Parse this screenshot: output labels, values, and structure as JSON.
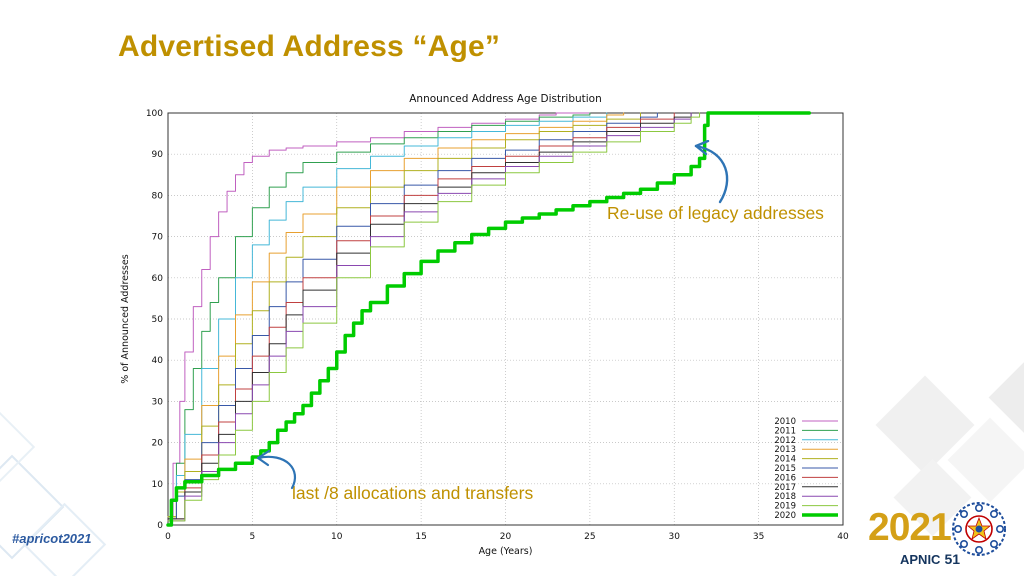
{
  "slide": {
    "title": "Advertised Address “Age”",
    "hashtag": "#apricot2021",
    "annotations": {
      "legacy": "Re-use of legacy addresses",
      "last8": "last /8 allocations and transfers"
    },
    "footer_logo": {
      "year": "2021",
      "brand": "APNIC",
      "number": "51"
    },
    "colors": {
      "title_gold": "#BF9000",
      "annotation_gold": "#BF9000",
      "arrow_blue": "#2E74B5",
      "hashtag_blue": "#2C5AA0",
      "logo_gold": "#D4A017",
      "logo_navy": "#15355E"
    }
  },
  "chart_data": {
    "type": "line",
    "title": "Announced Address Age Distribution",
    "xlabel": "Age (Years)",
    "ylabel": "% of Announced Addresses",
    "xlim": [
      0,
      40
    ],
    "ylim": [
      0,
      100
    ],
    "xticks": [
      0,
      5,
      10,
      15,
      20,
      25,
      30,
      35,
      40
    ],
    "yticks": [
      0,
      10,
      20,
      30,
      40,
      50,
      60,
      70,
      80,
      90,
      100
    ],
    "grid": true,
    "legend_position": "bottom-right",
    "series": [
      {
        "name": "2010",
        "color": "#c060c0",
        "width": 1,
        "points": [
          [
            0,
            2
          ],
          [
            0.3,
            15
          ],
          [
            0.7,
            30
          ],
          [
            1,
            42
          ],
          [
            1.5,
            53
          ],
          [
            2,
            62
          ],
          [
            2.5,
            70
          ],
          [
            3,
            76
          ],
          [
            3.5,
            81
          ],
          [
            4,
            85
          ],
          [
            4.5,
            88
          ],
          [
            5,
            89.5
          ],
          [
            6,
            91
          ],
          [
            7,
            91.5
          ],
          [
            8,
            92
          ],
          [
            10,
            93
          ],
          [
            12,
            94
          ],
          [
            14,
            95.5
          ],
          [
            16,
            96.5
          ],
          [
            18,
            97.5
          ],
          [
            20,
            98.5
          ],
          [
            22,
            99.5
          ],
          [
            23,
            100
          ],
          [
            25,
            100
          ]
        ]
      },
      {
        "name": "2011",
        "color": "#30a050",
        "width": 1,
        "points": [
          [
            0,
            2
          ],
          [
            0.5,
            15
          ],
          [
            1,
            28
          ],
          [
            1.5,
            38
          ],
          [
            2,
            47
          ],
          [
            2.5,
            54
          ],
          [
            3,
            60
          ],
          [
            4,
            70
          ],
          [
            5,
            77
          ],
          [
            6,
            82
          ],
          [
            7,
            85.5
          ],
          [
            8,
            88
          ],
          [
            10,
            90.5
          ],
          [
            12,
            92.5
          ],
          [
            14,
            94
          ],
          [
            16,
            95.5
          ],
          [
            18,
            97
          ],
          [
            20,
            98
          ],
          [
            22,
            99
          ],
          [
            24,
            99.5
          ],
          [
            25,
            100
          ]
        ]
      },
      {
        "name": "2012",
        "color": "#45b8d8",
        "width": 1,
        "points": [
          [
            0,
            2
          ],
          [
            0.5,
            12
          ],
          [
            1,
            22
          ],
          [
            2,
            38
          ],
          [
            3,
            50
          ],
          [
            4,
            60
          ],
          [
            5,
            68
          ],
          [
            6,
            74
          ],
          [
            7,
            78.5
          ],
          [
            8,
            82
          ],
          [
            10,
            86.5
          ],
          [
            12,
            89.5
          ],
          [
            14,
            92
          ],
          [
            16,
            94
          ],
          [
            18,
            95.5
          ],
          [
            20,
            97
          ],
          [
            22,
            98
          ],
          [
            24,
            99
          ],
          [
            26,
            100
          ]
        ]
      },
      {
        "name": "2013",
        "color": "#e8a030",
        "width": 1,
        "points": [
          [
            0,
            2
          ],
          [
            0.5,
            9
          ],
          [
            1,
            16
          ],
          [
            2,
            29
          ],
          [
            3,
            41
          ],
          [
            4,
            51
          ],
          [
            5,
            59
          ],
          [
            6,
            66
          ],
          [
            7,
            71
          ],
          [
            8,
            75.5
          ],
          [
            10,
            82
          ],
          [
            12,
            86
          ],
          [
            14,
            89
          ],
          [
            16,
            91.5
          ],
          [
            18,
            93.5
          ],
          [
            20,
            95
          ],
          [
            22,
            96.5
          ],
          [
            24,
            98
          ],
          [
            26,
            99.5
          ],
          [
            27,
            100
          ]
        ]
      },
      {
        "name": "2014",
        "color": "#b0b020",
        "width": 1,
        "points": [
          [
            0,
            2
          ],
          [
            0.5,
            8
          ],
          [
            1,
            13
          ],
          [
            2,
            24
          ],
          [
            3,
            34
          ],
          [
            4,
            44
          ],
          [
            5,
            52
          ],
          [
            6,
            59
          ],
          [
            7,
            65
          ],
          [
            8,
            70
          ],
          [
            10,
            77
          ],
          [
            12,
            82
          ],
          [
            14,
            86
          ],
          [
            16,
            89
          ],
          [
            18,
            91.5
          ],
          [
            20,
            93.5
          ],
          [
            22,
            95.5
          ],
          [
            24,
            97
          ],
          [
            26,
            98.5
          ],
          [
            28,
            100
          ]
        ]
      },
      {
        "name": "2015",
        "color": "#3858a8",
        "width": 1,
        "points": [
          [
            0,
            1.5
          ],
          [
            0.5,
            7
          ],
          [
            1,
            11
          ],
          [
            2,
            20
          ],
          [
            3,
            29
          ],
          [
            4,
            38
          ],
          [
            5,
            46
          ],
          [
            6,
            53
          ],
          [
            7,
            59
          ],
          [
            8,
            64.5
          ],
          [
            10,
            72.5
          ],
          [
            12,
            78
          ],
          [
            14,
            82.5
          ],
          [
            16,
            86
          ],
          [
            18,
            89
          ],
          [
            20,
            91
          ],
          [
            22,
            93.5
          ],
          [
            24,
            95.5
          ],
          [
            26,
            97.5
          ],
          [
            28,
            99
          ],
          [
            29,
            100
          ]
        ]
      },
      {
        "name": "2016",
        "color": "#c04040",
        "width": 1,
        "points": [
          [
            0,
            1.5
          ],
          [
            1,
            9
          ],
          [
            2,
            17
          ],
          [
            3,
            25
          ],
          [
            4,
            33
          ],
          [
            5,
            41
          ],
          [
            6,
            48
          ],
          [
            7,
            54
          ],
          [
            8,
            60
          ],
          [
            10,
            69
          ],
          [
            12,
            75
          ],
          [
            14,
            80
          ],
          [
            16,
            84
          ],
          [
            18,
            87
          ],
          [
            20,
            89.5
          ],
          [
            22,
            92
          ],
          [
            24,
            94
          ],
          [
            26,
            96.5
          ],
          [
            28,
            98.5
          ],
          [
            30,
            100
          ]
        ]
      },
      {
        "name": "2017",
        "color": "#303030",
        "width": 1,
        "points": [
          [
            0,
            1.5
          ],
          [
            1,
            8
          ],
          [
            2,
            15
          ],
          [
            3,
            22
          ],
          [
            4,
            30
          ],
          [
            5,
            37
          ],
          [
            6,
            44
          ],
          [
            7,
            51
          ],
          [
            8,
            57
          ],
          [
            10,
            66
          ],
          [
            12,
            73
          ],
          [
            14,
            78
          ],
          [
            16,
            82
          ],
          [
            18,
            85.5
          ],
          [
            20,
            88
          ],
          [
            22,
            90.5
          ],
          [
            24,
            93
          ],
          [
            26,
            95.5
          ],
          [
            28,
            97.5
          ],
          [
            30,
            99
          ],
          [
            31,
            100
          ]
        ]
      },
      {
        "name": "2018",
        "color": "#8a48b0",
        "width": 1,
        "points": [
          [
            0,
            1
          ],
          [
            1,
            7
          ],
          [
            2,
            13
          ],
          [
            3,
            20
          ],
          [
            4,
            27
          ],
          [
            5,
            34
          ],
          [
            6,
            41
          ],
          [
            7,
            47
          ],
          [
            8,
            53
          ],
          [
            10,
            63
          ],
          [
            12,
            70
          ],
          [
            14,
            76
          ],
          [
            16,
            80.5
          ],
          [
            18,
            84
          ],
          [
            20,
            87
          ],
          [
            22,
            89.5
          ],
          [
            24,
            92
          ],
          [
            26,
            94.5
          ],
          [
            28,
            96.5
          ],
          [
            30,
            98.5
          ],
          [
            31,
            100
          ]
        ]
      },
      {
        "name": "2019",
        "color": "#8cc840",
        "width": 1,
        "points": [
          [
            0,
            1
          ],
          [
            1,
            6
          ],
          [
            2,
            11
          ],
          [
            3,
            17
          ],
          [
            4,
            23
          ],
          [
            5,
            30
          ],
          [
            6,
            37
          ],
          [
            7,
            43
          ],
          [
            8,
            49
          ],
          [
            10,
            60
          ],
          [
            12,
            67.5
          ],
          [
            14,
            73.5
          ],
          [
            16,
            78.5
          ],
          [
            18,
            82.5
          ],
          [
            20,
            85.5
          ],
          [
            22,
            88
          ],
          [
            24,
            90.5
          ],
          [
            26,
            93
          ],
          [
            28,
            95.5
          ],
          [
            30,
            97.5
          ],
          [
            31,
            99
          ],
          [
            31.5,
            100
          ]
        ]
      },
      {
        "name": "2020",
        "color": "#00cc00",
        "width": 3.5,
        "points": [
          [
            0,
            0
          ],
          [
            0.2,
            6
          ],
          [
            0.5,
            9
          ],
          [
            1,
            10.5
          ],
          [
            2,
            12
          ],
          [
            3,
            13.5
          ],
          [
            4,
            15
          ],
          [
            5,
            16.5
          ],
          [
            5.5,
            18
          ],
          [
            6,
            20
          ],
          [
            6.5,
            23
          ],
          [
            7,
            25
          ],
          [
            7.5,
            27
          ],
          [
            8,
            29
          ],
          [
            8.5,
            32
          ],
          [
            9,
            35
          ],
          [
            9.5,
            38
          ],
          [
            10,
            42
          ],
          [
            10.5,
            46
          ],
          [
            11,
            49
          ],
          [
            11.5,
            52
          ],
          [
            12,
            54
          ],
          [
            13,
            58
          ],
          [
            14,
            61
          ],
          [
            15,
            64
          ],
          [
            16,
            66.5
          ],
          [
            17,
            68.5
          ],
          [
            18,
            70.5
          ],
          [
            19,
            72
          ],
          [
            20,
            73.5
          ],
          [
            21,
            74.5
          ],
          [
            22,
            75.5
          ],
          [
            23,
            76.5
          ],
          [
            24,
            77.5
          ],
          [
            25,
            78.5
          ],
          [
            26,
            79.5
          ],
          [
            27,
            80.5
          ],
          [
            28,
            81.5
          ],
          [
            29,
            83
          ],
          [
            30,
            85
          ],
          [
            31,
            87
          ],
          [
            31.5,
            89
          ],
          [
            31.8,
            97
          ],
          [
            32,
            100
          ],
          [
            38,
            100
          ]
        ]
      }
    ]
  }
}
